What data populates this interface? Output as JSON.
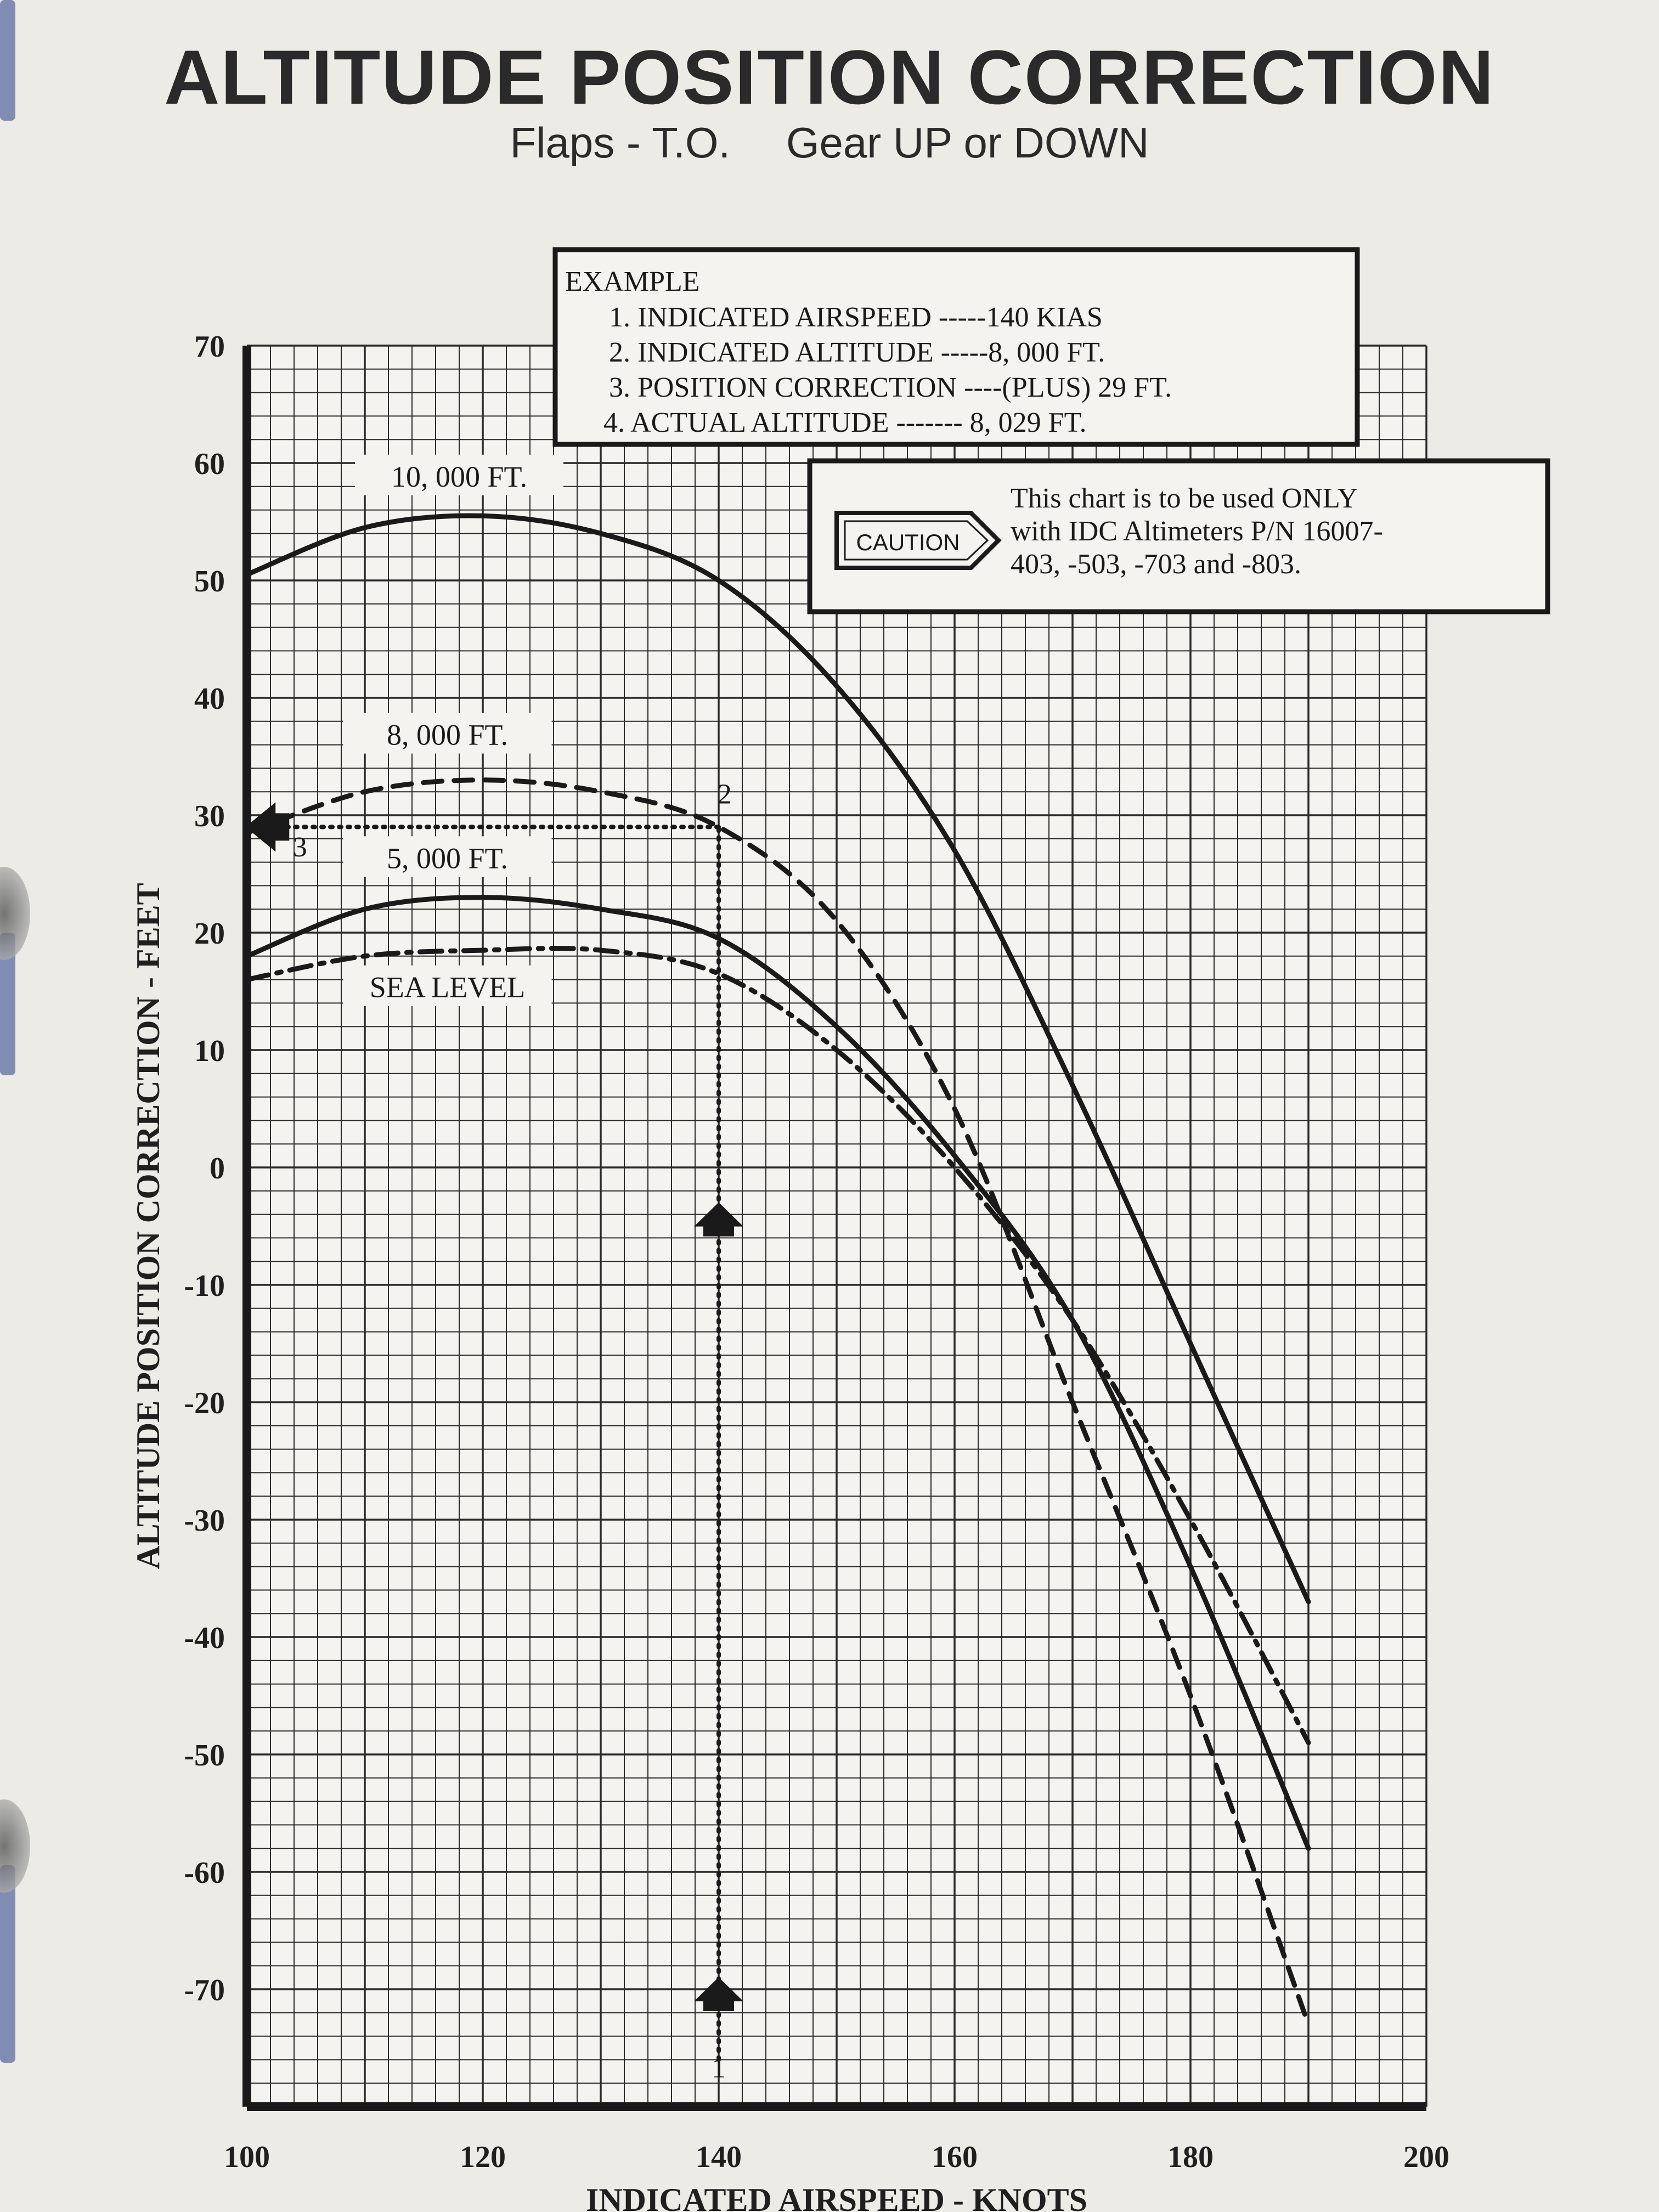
{
  "title": "ALTITUDE POSITION CORRECTION",
  "subtitle": [
    "Flaps - T.O.",
    "Gear UP or DOWN"
  ],
  "example": {
    "heading": "EXAMPLE",
    "lines": [
      "1.  INDICATED AIRSPEED -----140 KIAS",
      "2.  INDICATED ALTITUDE -----8, 000 FT.",
      "3.  POSITION CORRECTION ----(PLUS) 29 FT.",
      "4. ACTUAL ALTITUDE -------  8, 029 FT."
    ]
  },
  "caution": {
    "badge": "CAUTION",
    "lines": [
      "This chart is to be used ONLY",
      "with IDC Altimeters P/N 16007-",
      "403,  -503,  -703 and -803."
    ]
  },
  "chart_data": {
    "type": "line",
    "xlabel": "INDICATED AIRSPEED - KNOTS",
    "ylabel": "ALTITUDE POSITION CORRECTION - FEET",
    "xlim": [
      100,
      200
    ],
    "ylim": [
      -80,
      70
    ],
    "x_ticks": [
      100,
      120,
      140,
      160,
      180,
      200
    ],
    "y_ticks": [
      70,
      60,
      50,
      40,
      30,
      20,
      10,
      0,
      -10,
      -20,
      -30,
      -40,
      -50,
      -60,
      -70
    ],
    "grid": true,
    "series": [
      {
        "name": "10, 000 FT.",
        "style": "solid",
        "x": [
          100,
          110,
          120,
          130,
          140,
          150,
          160,
          170,
          180,
          190
        ],
        "y": [
          50.5,
          54.5,
          55.5,
          54,
          50,
          41,
          27,
          7,
          -15,
          -37
        ]
      },
      {
        "name": "8, 000 FT.",
        "style": "dashed",
        "x": [
          100,
          110,
          120,
          130,
          140,
          150,
          160,
          170,
          180,
          190
        ],
        "y": [
          28.5,
          32,
          33,
          32,
          29,
          21,
          5,
          -20,
          -45,
          -73
        ]
      },
      {
        "name": "5, 000 FT.",
        "style": "solid",
        "x": [
          100,
          110,
          120,
          130,
          140,
          150,
          160,
          170,
          180,
          190
        ],
        "y": [
          18,
          22,
          23,
          22,
          19.5,
          12,
          1,
          -13,
          -34,
          -58
        ]
      },
      {
        "name": "SEA LEVEL",
        "style": "dashdot",
        "x": [
          100,
          110,
          120,
          130,
          140,
          150,
          160,
          170,
          180,
          190
        ],
        "y": [
          16,
          18,
          18.5,
          18.5,
          16.5,
          10,
          0,
          -13,
          -30,
          -49
        ]
      }
    ],
    "example_path": {
      "airspeed": 140,
      "correction": 29,
      "markers": [
        "1",
        "2",
        "3"
      ]
    }
  }
}
